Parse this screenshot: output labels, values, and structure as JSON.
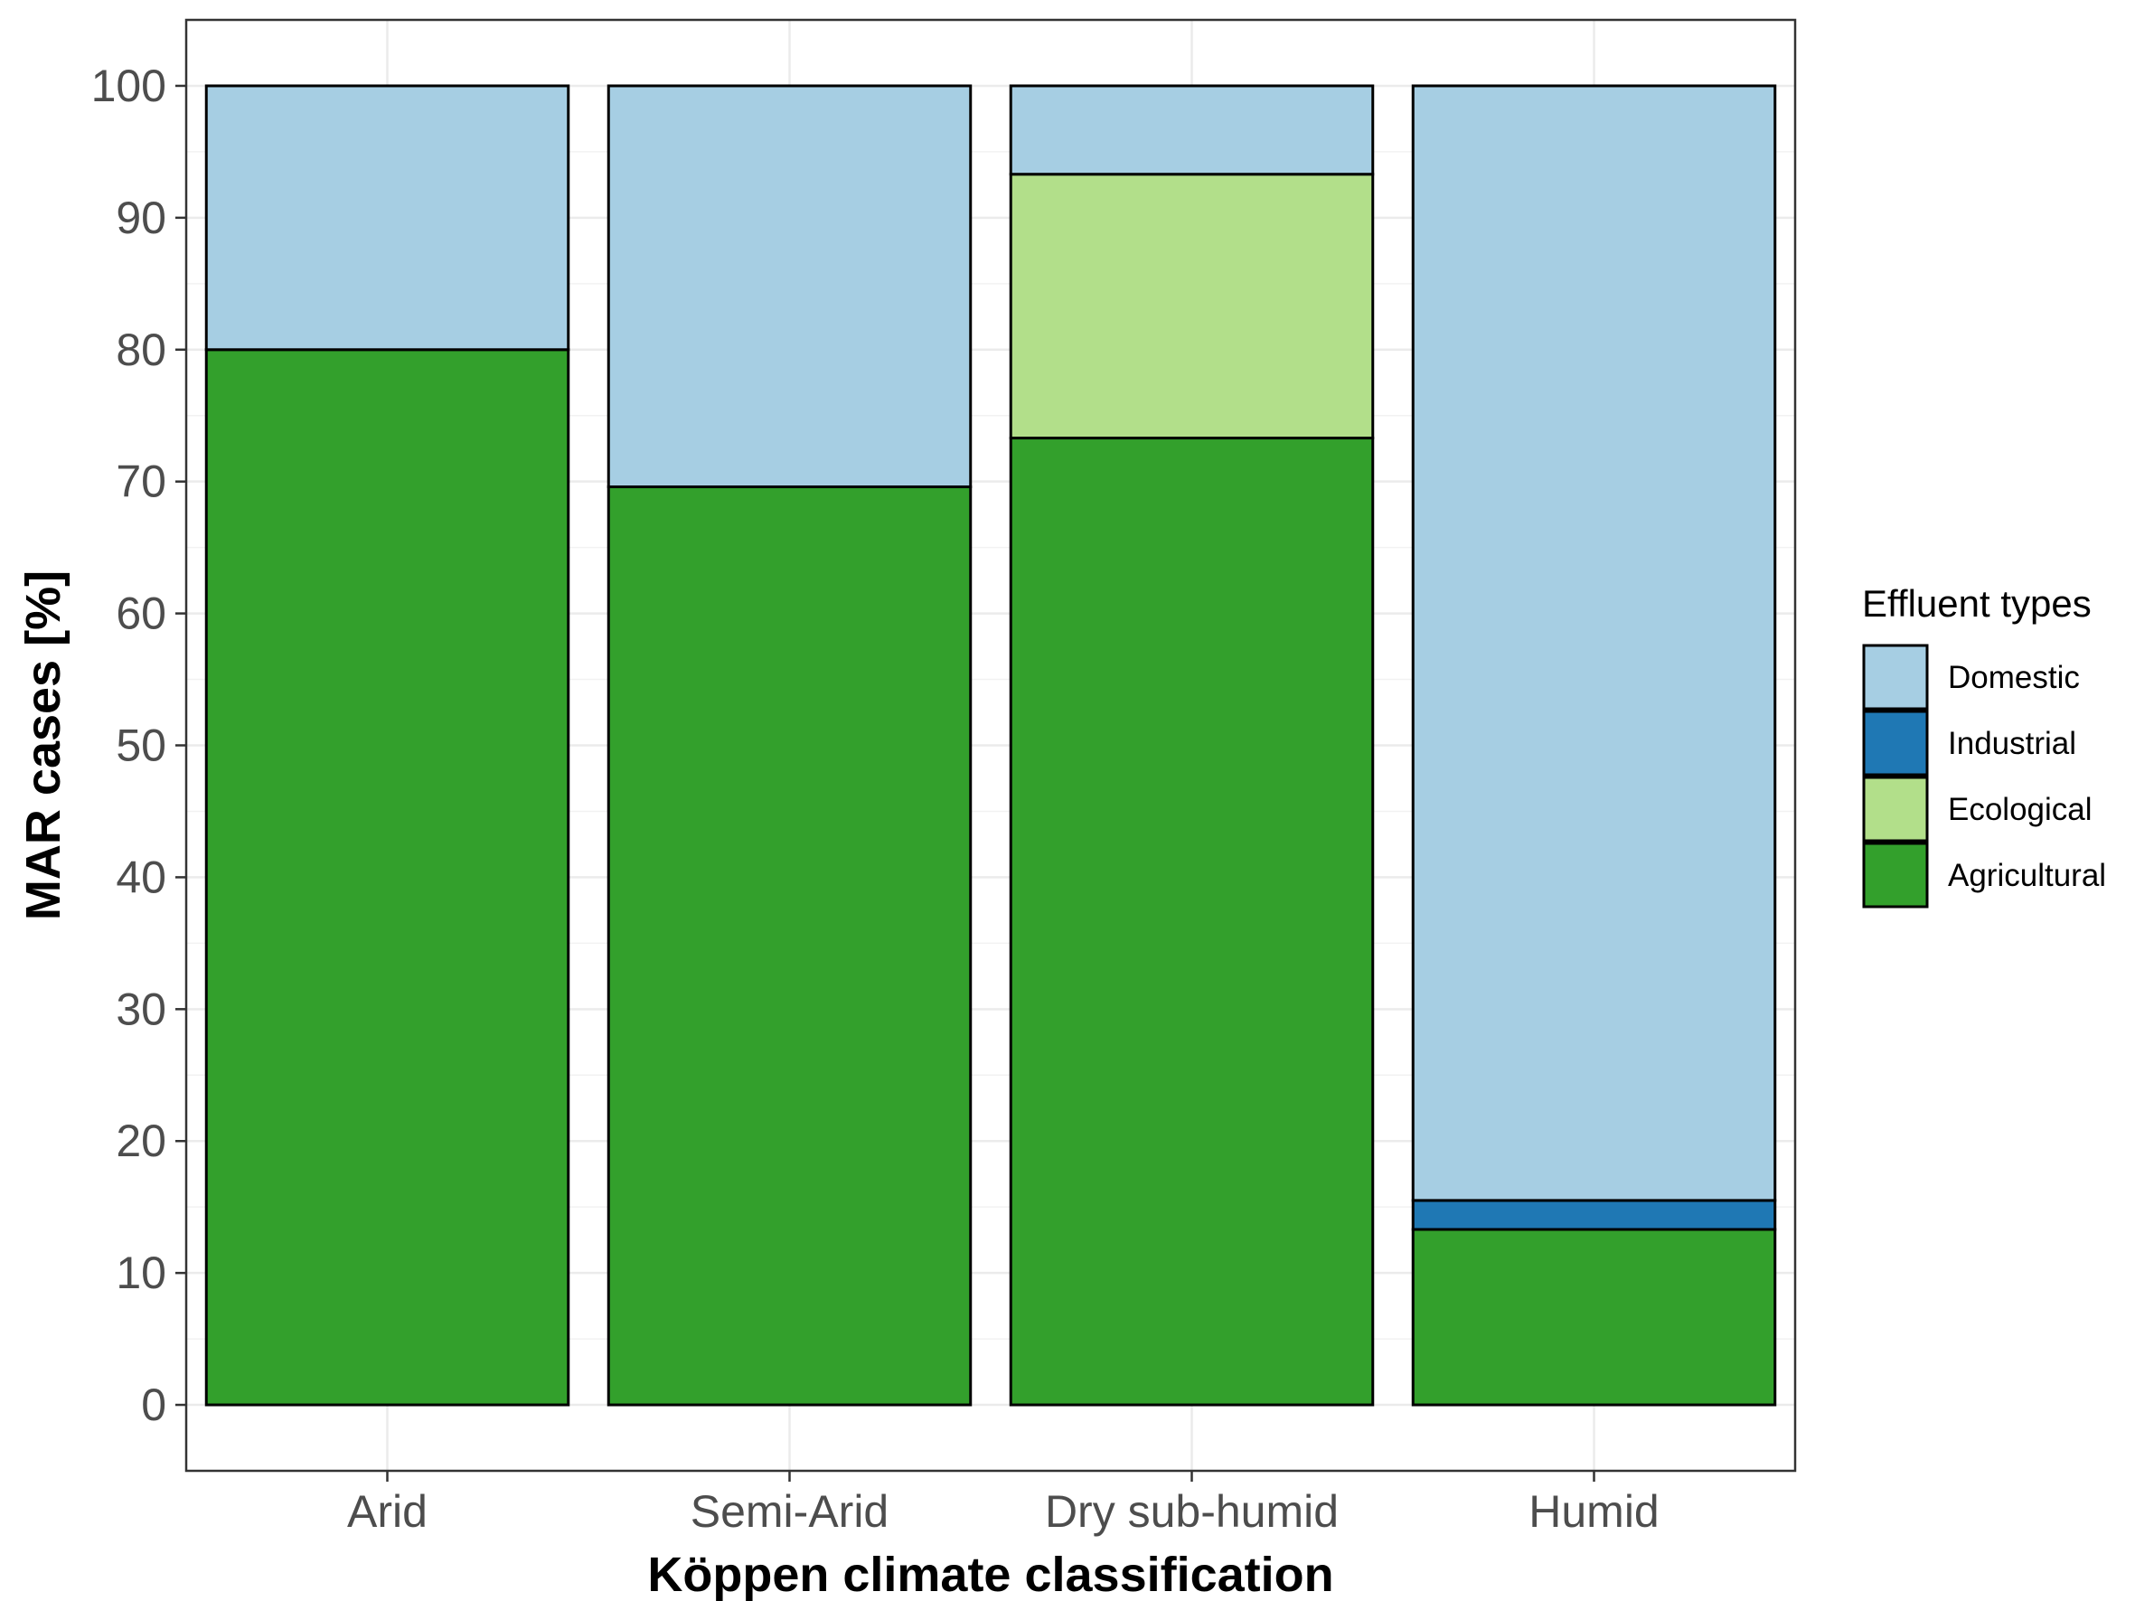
{
  "chart_data": {
    "type": "bar",
    "stacked": true,
    "categories": [
      "Arid",
      "Semi-Arid",
      "Dry sub-humid",
      "Humid"
    ],
    "series": [
      {
        "name": "Agricultural",
        "values": [
          80.0,
          69.6,
          73.3,
          13.3
        ]
      },
      {
        "name": "Ecological",
        "values": [
          0.0,
          0.0,
          20.0,
          0.0
        ]
      },
      {
        "name": "Industrial",
        "values": [
          0.0,
          0.0,
          0.0,
          2.2
        ]
      },
      {
        "name": "Domestic",
        "values": [
          20.0,
          30.4,
          6.7,
          84.5
        ]
      }
    ],
    "xlabel": "Köppen climate classification",
    "ylabel": "MAR cases [%]",
    "ylim": [
      -5,
      105
    ],
    "yticks": [
      0,
      10,
      20,
      30,
      40,
      50,
      60,
      70,
      80,
      90,
      100
    ],
    "grid": true,
    "legend": {
      "title": "Effluent types",
      "position": "right",
      "entries": [
        "Domestic",
        "Industrial",
        "Ecological",
        "Agricultural"
      ]
    },
    "colors": {
      "Domestic": "#a6cee3",
      "Industrial": "#1f78b4",
      "Ecological": "#b2df8a",
      "Agricultural": "#33a02c"
    }
  }
}
